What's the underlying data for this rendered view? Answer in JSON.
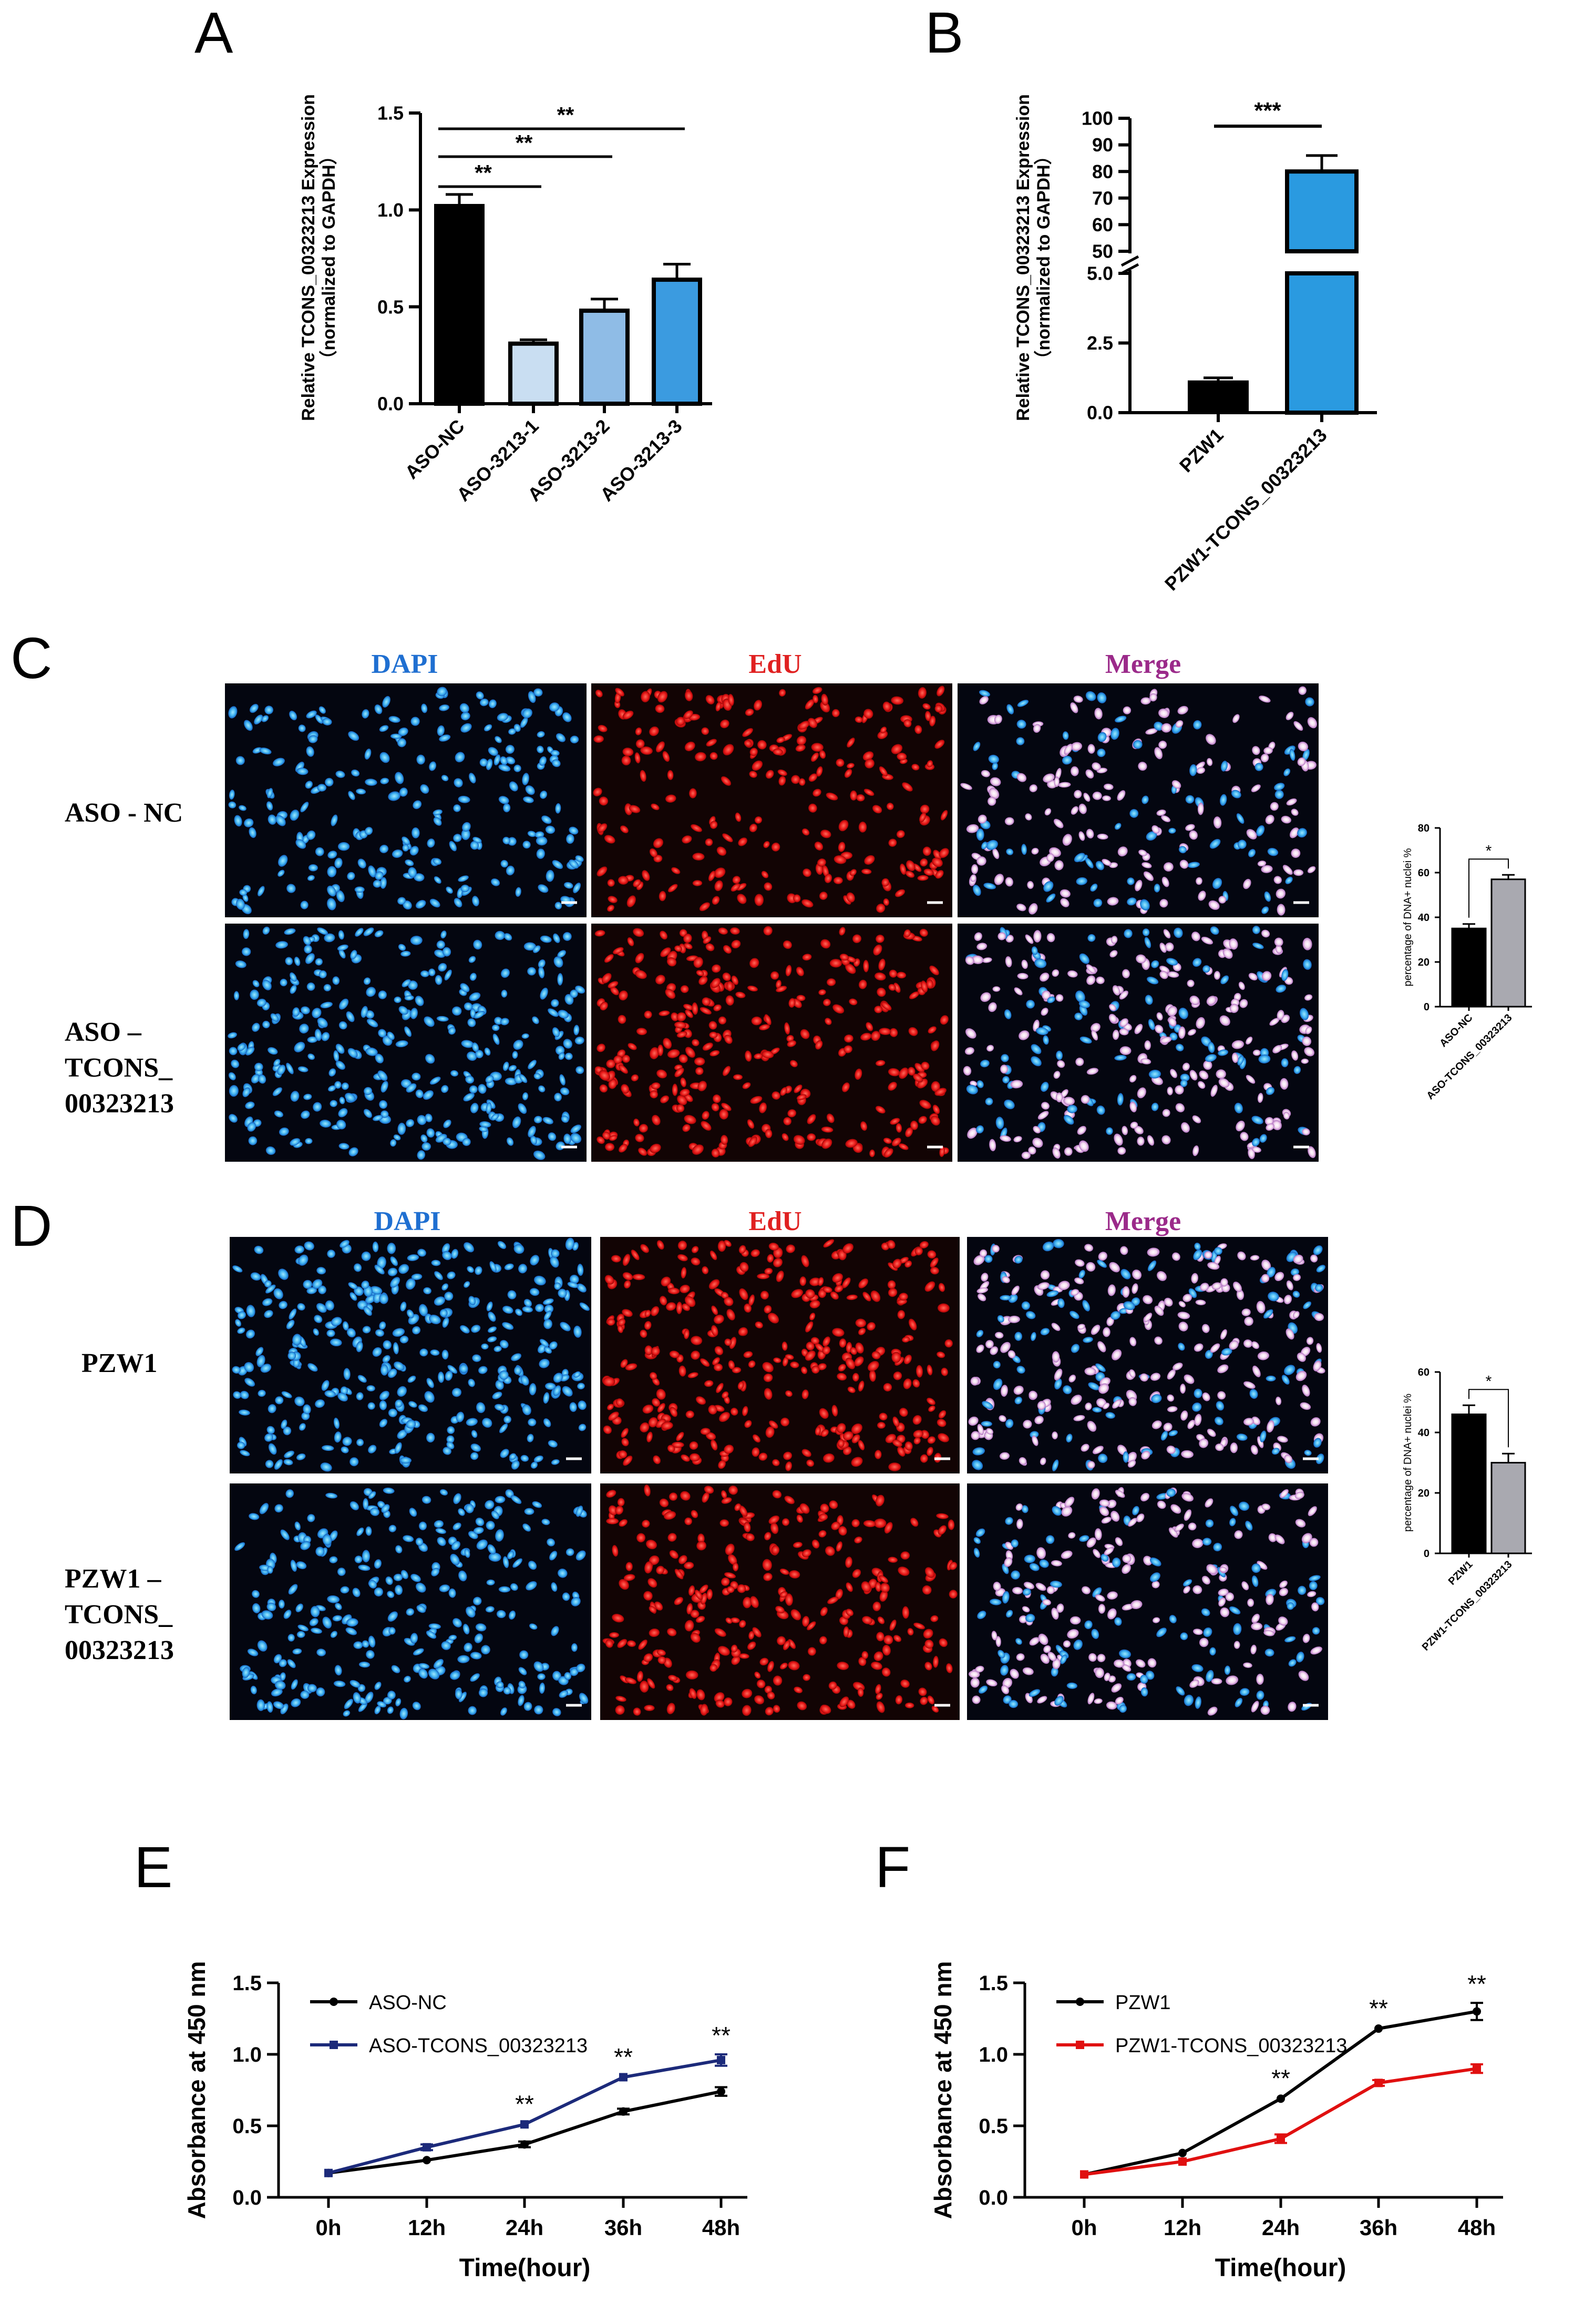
{
  "panels": {
    "A": {
      "letter": "A"
    },
    "B": {
      "letter": "B"
    },
    "C": {
      "letter": "C",
      "columns": [
        "DAPI",
        "EdU",
        "Merge"
      ],
      "rows": [
        [
          "ASO - NC"
        ],
        [
          "ASO –",
          "TCONS_",
          "00323213"
        ]
      ]
    },
    "D": {
      "letter": "D",
      "columns": [
        "DAPI",
        "EdU",
        "Merge"
      ],
      "rows": [
        [
          "PZW1"
        ],
        [
          "PZW1 –",
          "TCONS_",
          "00323213"
        ]
      ]
    },
    "E": {
      "letter": "E"
    },
    "F": {
      "letter": "F"
    }
  },
  "colors": {
    "dapi": "#1f6fd1",
    "edu": "#e02020",
    "merge": "#9b2a8a",
    "black": "#000000",
    "navy": "#1c2a7a",
    "red": "#e01010",
    "light_blue_1": "#c9def2",
    "light_blue_2": "#8fbce6",
    "mid_blue": "#3b9be0",
    "bright_blue": "#2a9ae0",
    "grey": "#a9a9b0"
  },
  "chart_data": [
    {
      "id": "A",
      "type": "bar",
      "ylabel": [
        "Relative TCONS_00323213 Expression",
        "（normalized to GAPDH）"
      ],
      "categories": [
        "ASO-NC",
        "ASO-3213-1",
        "ASO-3213-2",
        "ASO-3213-3"
      ],
      "values": [
        1.02,
        0.31,
        0.48,
        0.64
      ],
      "errors": [
        0.06,
        0.02,
        0.06,
        0.08
      ],
      "yticks": [
        "0.0",
        "0.5",
        "1.0",
        "1.5"
      ],
      "ylim": [
        0,
        1.5
      ],
      "significance": [
        {
          "from": "ASO-NC",
          "to": "ASO-3213-1",
          "label": "**"
        },
        {
          "from": "ASO-NC",
          "to": "ASO-3213-2",
          "label": "**"
        },
        {
          "from": "ASO-NC",
          "to": "ASO-3213-3",
          "label": "**"
        }
      ]
    },
    {
      "id": "B",
      "type": "bar",
      "ylabel": [
        "Relative TCONS_00323213 Expression",
        "（normalized to GAPDH）"
      ],
      "categories": [
        "PZW1",
        "PZW1-TCONS_00323213"
      ],
      "values": [
        1.1,
        80
      ],
      "errors": [
        0.15,
        6
      ],
      "axis_break": {
        "lower": [
          0,
          5
        ],
        "upper": [
          50,
          100
        ]
      },
      "yticks_lower": [
        "0.0",
        "2.5",
        "5.0"
      ],
      "yticks_upper": [
        "50",
        "60",
        "70",
        "80",
        "90",
        "100"
      ],
      "significance": [
        {
          "from": "PZW1",
          "to": "PZW1-TCONS_00323213",
          "label": "***"
        }
      ]
    },
    {
      "id": "C-inset",
      "type": "bar",
      "ylabel": "percentage of DNA+ nuclei %",
      "categories": [
        "ASO-NC",
        "ASO-TCONS_00323213"
      ],
      "values": [
        35,
        57
      ],
      "errors": [
        2,
        2
      ],
      "yticks": [
        "0",
        "20",
        "40",
        "60",
        "80"
      ],
      "ylim": [
        0,
        80
      ],
      "significance": [
        {
          "from": "ASO-NC",
          "to": "ASO-TCONS_00323213",
          "label": "*"
        }
      ]
    },
    {
      "id": "D-inset",
      "type": "bar",
      "ylabel": "percentage of DNA+ nuclei %",
      "categories": [
        "PZW1",
        "PZW1-TCONS_00323213"
      ],
      "values": [
        46,
        30
      ],
      "errors": [
        3,
        3
      ],
      "yticks": [
        "0",
        "20",
        "40",
        "60"
      ],
      "ylim": [
        0,
        60
      ],
      "significance": [
        {
          "from": "PZW1",
          "to": "PZW1-TCONS_00323213",
          "label": "*"
        }
      ]
    },
    {
      "id": "E",
      "type": "line",
      "xlabel": "Time(hour)",
      "ylabel": "Absorbance at 450 nm",
      "categories": [
        "0h",
        "12h",
        "24h",
        "36h",
        "48h"
      ],
      "yticks": [
        "0.0",
        "0.5",
        "1.0",
        "1.5"
      ],
      "ylim": [
        0,
        1.5
      ],
      "legend_position": "top-left",
      "series": [
        {
          "name": "ASO-NC",
          "values": [
            0.17,
            0.26,
            0.37,
            0.6,
            0.74
          ],
          "errors": [
            0.01,
            0.01,
            0.02,
            0.02,
            0.03
          ],
          "marker": "circle"
        },
        {
          "name": "ASO-TCONS_00323213",
          "values": [
            0.17,
            0.35,
            0.51,
            0.84,
            0.96
          ],
          "errors": [
            0.01,
            0.02,
            0.01,
            0.01,
            0.04
          ],
          "marker": "square"
        }
      ],
      "annotations": [
        {
          "x": "24h",
          "label": "**"
        },
        {
          "x": "36h",
          "label": "**"
        },
        {
          "x": "48h",
          "label": "**"
        }
      ]
    },
    {
      "id": "F",
      "type": "line",
      "xlabel": "Time(hour)",
      "ylabel": "Absorbance at 450 nm",
      "categories": [
        "0h",
        "12h",
        "24h",
        "36h",
        "48h"
      ],
      "yticks": [
        "0.0",
        "0.5",
        "1.0",
        "1.5"
      ],
      "ylim": [
        0,
        1.5
      ],
      "legend_position": "top-left",
      "series": [
        {
          "name": "PZW1",
          "values": [
            0.16,
            0.31,
            0.69,
            1.18,
            1.3
          ],
          "errors": [
            0.01,
            0.01,
            0.01,
            0.01,
            0.06
          ],
          "marker": "circle"
        },
        {
          "name": "PZW1-TCONS_00323213",
          "values": [
            0.16,
            0.25,
            0.41,
            0.8,
            0.9
          ],
          "errors": [
            0.01,
            0.01,
            0.03,
            0.02,
            0.03
          ],
          "marker": "square"
        }
      ],
      "annotations": [
        {
          "x": "24h",
          "label": "**"
        },
        {
          "x": "36h",
          "label": "**"
        },
        {
          "x": "48h",
          "label": "**"
        }
      ]
    }
  ]
}
